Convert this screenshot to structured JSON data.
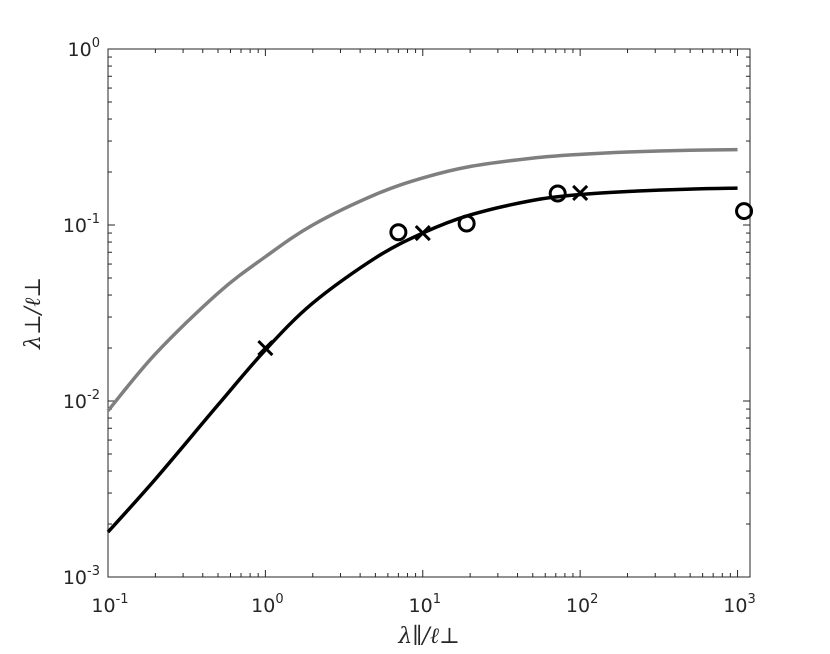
{
  "chart_data": {
    "type": "line",
    "title": "",
    "xlabel": "λ∥/ℓ⊥",
    "ylabel": "λ⊥/ℓ⊥",
    "xscale": "log",
    "yscale": "log",
    "xlim": [
      0.1,
      1200
    ],
    "ylim": [
      0.001,
      1
    ],
    "grid": false,
    "legend": "none",
    "x_ticks": [
      {
        "base": "10",
        "exp": "-1",
        "value": 0.1
      },
      {
        "base": "10",
        "exp": "0",
        "value": 1
      },
      {
        "base": "10",
        "exp": "1",
        "value": 10
      },
      {
        "base": "10",
        "exp": "2",
        "value": 100
      },
      {
        "base": "10",
        "exp": "3",
        "value": 1000
      }
    ],
    "y_ticks": [
      {
        "base": "10",
        "exp": "-3",
        "value": 0.001
      },
      {
        "base": "10",
        "exp": "-2",
        "value": 0.01
      },
      {
        "base": "10",
        "exp": "-1",
        "value": 0.1
      },
      {
        "base": "10",
        "exp": "0",
        "value": 1
      }
    ],
    "series": [
      {
        "style": "line",
        "color": "#7f7f7f",
        "x": [
          0.1,
          0.2,
          0.5,
          1,
          2,
          5,
          10,
          20,
          50,
          100,
          200,
          500,
          1000
        ],
        "y": [
          0.0088,
          0.0185,
          0.041,
          0.066,
          0.1,
          0.149,
          0.185,
          0.215,
          0.24,
          0.252,
          0.26,
          0.266,
          0.268
        ]
      },
      {
        "style": "line",
        "color": "#000000",
        "x": [
          0.1,
          0.2,
          0.5,
          1,
          2,
          5,
          10,
          20,
          50,
          100,
          200,
          500,
          1000
        ],
        "y": [
          0.0018,
          0.0036,
          0.0095,
          0.0195,
          0.036,
          0.065,
          0.09,
          0.114,
          0.138,
          0.149,
          0.155,
          0.16,
          0.162
        ]
      },
      {
        "style": "marker-o",
        "color": "#000000",
        "x": [
          7,
          19,
          72,
          1100
        ],
        "y": [
          0.091,
          0.102,
          0.151,
          0.12
        ]
      },
      {
        "style": "marker-x",
        "color": "#000000",
        "x": [
          1,
          10,
          100
        ],
        "y": [
          0.02,
          0.09,
          0.152
        ]
      }
    ]
  }
}
